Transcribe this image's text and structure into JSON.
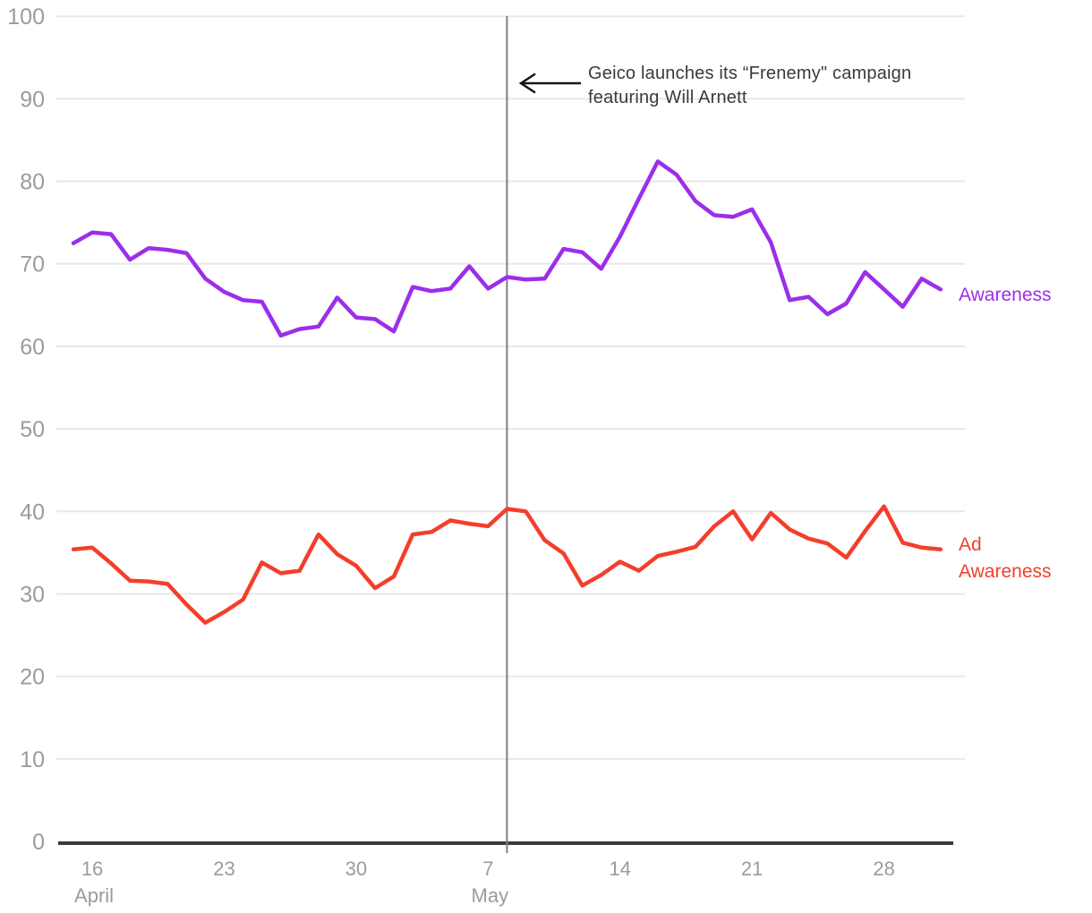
{
  "annotation": {
    "line1": "Geico launches its “Frenemy\" campaign",
    "line2": "featuring Will Arnett"
  },
  "series_labels": {
    "awareness": "Awareness",
    "ad_awareness_line1": "Ad",
    "ad_awareness_line2": "Awareness"
  },
  "colors": {
    "awareness_line": "#9C2EEA",
    "ad_awareness_line": "#F43E2C",
    "grid": "#E8E8E8",
    "axis": "#3B3B3B",
    "tick_text": "#9B9B9B",
    "event_line": "#808080",
    "annotation_text": "#3A3A3A",
    "arrow": "#161616",
    "background": "#FFFFFF"
  },
  "chart_data": {
    "type": "line",
    "title": "",
    "xlabel": "",
    "ylabel": "",
    "ylim": [
      0,
      100
    ],
    "grid": true,
    "legend_position": "right-of-line-ends",
    "y_ticks": [
      0,
      10,
      20,
      30,
      40,
      50,
      60,
      70,
      80,
      90,
      100
    ],
    "x_ticks": [
      {
        "day": "16",
        "month": "April",
        "index": 1
      },
      {
        "day": "23",
        "month": "",
        "index": 8
      },
      {
        "day": "30",
        "month": "",
        "index": 15
      },
      {
        "day": "7",
        "month": "May",
        "index": 22
      },
      {
        "day": "14",
        "month": "",
        "index": 29
      },
      {
        "day": "21",
        "month": "",
        "index": 36
      },
      {
        "day": "28",
        "month": "",
        "index": 43
      }
    ],
    "event_index": 23,
    "event_label": "Geico launches its “Frenemy\" campaign featuring Will Arnett",
    "x": [
      "Apr 15",
      "Apr 16",
      "Apr 17",
      "Apr 18",
      "Apr 19",
      "Apr 20",
      "Apr 21",
      "Apr 22",
      "Apr 23",
      "Apr 24",
      "Apr 25",
      "Apr 26",
      "Apr 27",
      "Apr 28",
      "Apr 29",
      "Apr 30",
      "May 1",
      "May 2",
      "May 3",
      "May 4",
      "May 5",
      "May 6",
      "May 7",
      "May 8",
      "May 9",
      "May 10",
      "May 11",
      "May 12",
      "May 13",
      "May 14",
      "May 15",
      "May 16",
      "May 17",
      "May 18",
      "May 19",
      "May 20",
      "May 21",
      "May 22",
      "May 23",
      "May 24",
      "May 25",
      "May 26",
      "May 27",
      "May 28",
      "May 29",
      "May 30",
      "May 31"
    ],
    "series": [
      {
        "name": "Awareness",
        "color": "#9C2EEA",
        "values": [
          72.5,
          73.8,
          73.6,
          70.5,
          71.9,
          71.7,
          71.3,
          68.2,
          66.6,
          65.6,
          65.4,
          61.3,
          62.1,
          62.4,
          65.9,
          63.5,
          63.3,
          61.8,
          67.2,
          66.7,
          67.0,
          69.7,
          67.0,
          68.4,
          68.1,
          68.2,
          71.8,
          71.4,
          69.4,
          73.3,
          77.9,
          82.4,
          80.8,
          77.6,
          75.9,
          75.7,
          76.6,
          72.6,
          65.6,
          66.0,
          63.9,
          65.2,
          69.0,
          66.9,
          64.8,
          68.2,
          66.9
        ]
      },
      {
        "name": "Ad Awareness",
        "color": "#F43E2C",
        "values": [
          35.4,
          35.6,
          33.7,
          31.6,
          31.5,
          31.2,
          28.7,
          26.5,
          27.8,
          29.3,
          33.8,
          32.5,
          32.8,
          37.2,
          34.8,
          33.4,
          30.7,
          32.1,
          37.2,
          37.5,
          38.9,
          38.5,
          38.2,
          40.3,
          40.0,
          36.5,
          34.9,
          31.0,
          32.3,
          33.9,
          32.8,
          34.6,
          35.1,
          35.7,
          38.2,
          40.0,
          36.6,
          39.8,
          37.8,
          36.7,
          36.1,
          34.4,
          37.6,
          40.6,
          36.2,
          35.6,
          35.4
        ]
      }
    ]
  }
}
